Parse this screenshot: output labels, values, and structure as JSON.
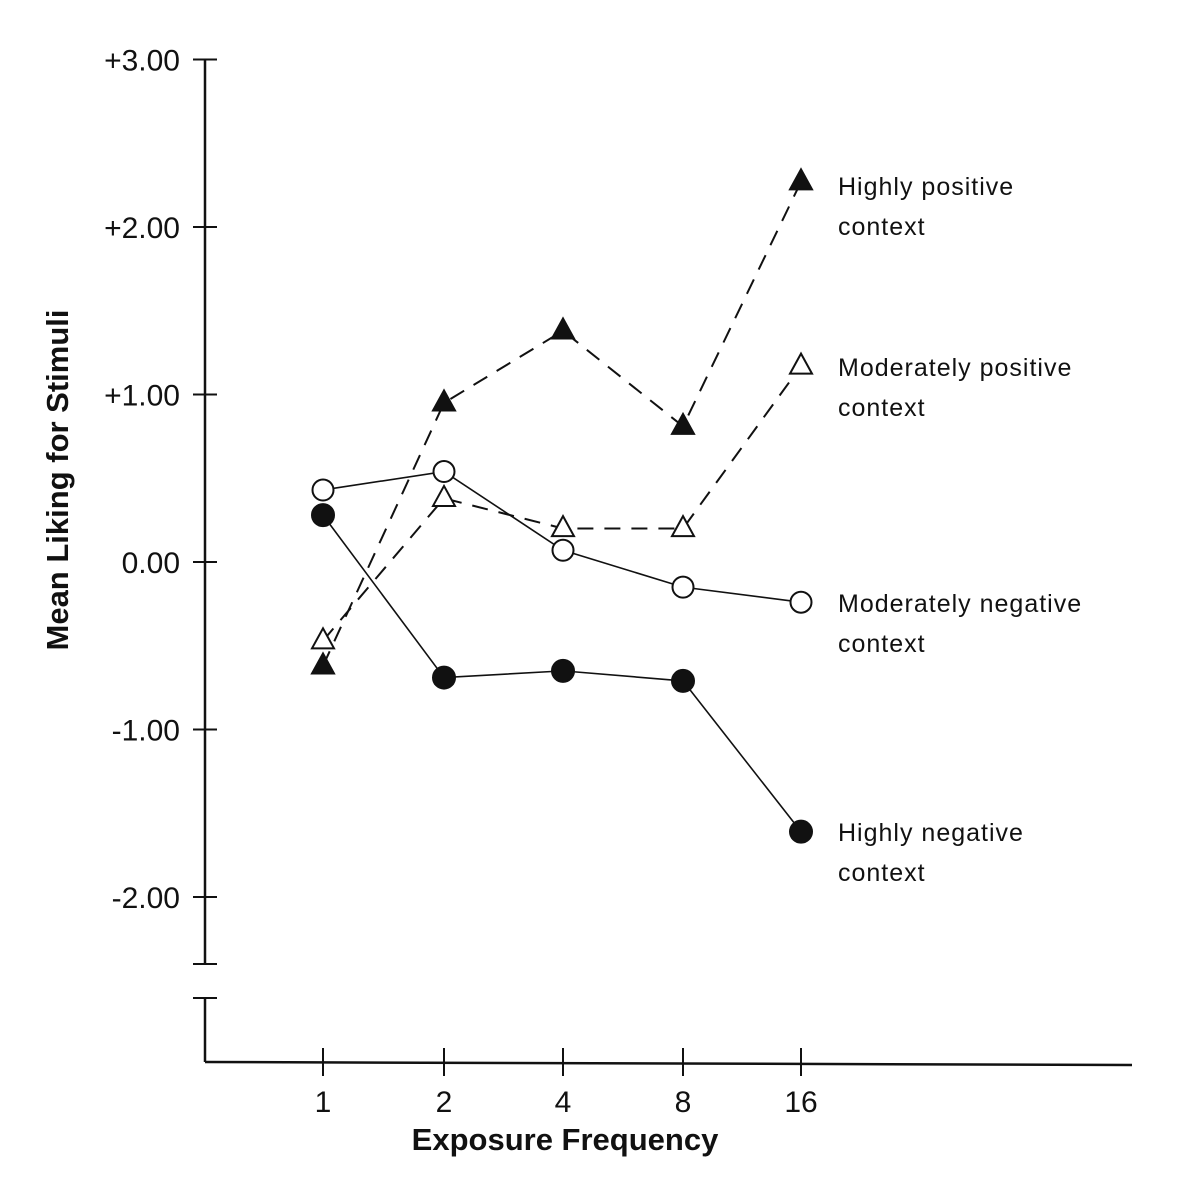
{
  "chart_data": {
    "type": "line",
    "title": "",
    "xlabel": "Exposure Frequency",
    "ylabel": "Mean Liking for Stimuli",
    "categories": [
      "1",
      "2",
      "4",
      "8",
      "16"
    ],
    "y_ticks": [
      {
        "value": 3,
        "label": "+3.00"
      },
      {
        "value": 2,
        "label": "+2.00"
      },
      {
        "value": 1,
        "label": "+1.00"
      },
      {
        "value": 0,
        "label": "0.00"
      },
      {
        "value": -1,
        "label": "-1.00"
      },
      {
        "value": -2,
        "label": "-2.00"
      }
    ],
    "ylim": [
      -2.4,
      3.0
    ],
    "axis_break": true,
    "grid": false,
    "legend_placement": "labels at line ends (right)",
    "series": [
      {
        "id": "highly-positive",
        "name_lines": [
          "Highly positive",
          "context"
        ],
        "marker": "triangle-filled",
        "line_style": "dashed",
        "values": [
          -0.62,
          0.95,
          1.38,
          0.81,
          2.27
        ]
      },
      {
        "id": "moderately-positive",
        "name_lines": [
          "Moderately positive",
          "context"
        ],
        "marker": "triangle-open",
        "line_style": "dashed",
        "values": [
          -0.47,
          0.38,
          0.2,
          0.2,
          1.17
        ]
      },
      {
        "id": "moderately-negative",
        "name_lines": [
          "Moderately negative",
          "context"
        ],
        "marker": "circle-open",
        "line_style": "solid",
        "values": [
          0.43,
          0.54,
          0.07,
          -0.15,
          -0.24
        ]
      },
      {
        "id": "highly-negative",
        "name_lines": [
          "Highly negative",
          "context"
        ],
        "marker": "circle-filled",
        "line_style": "solid",
        "values": [
          0.28,
          -0.69,
          -0.65,
          -0.71,
          -1.61
        ]
      }
    ]
  }
}
